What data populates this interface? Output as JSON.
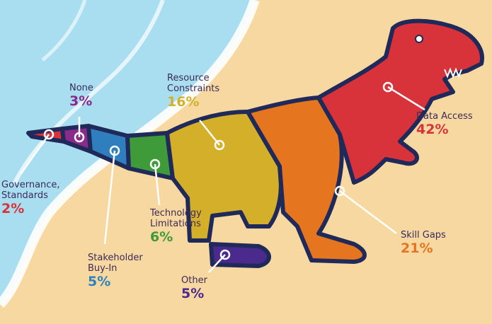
{
  "chart_data": {
    "type": "pie",
    "title": "",
    "categories": [
      "Data Access",
      "Skill Gaps",
      "Resource Constraints",
      "Technology Limitations",
      "Stakeholder Buy-In",
      "Other",
      "None",
      "Governance, Standards"
    ],
    "values": [
      42,
      21,
      16,
      6,
      5,
      5,
      3,
      2
    ],
    "labels": [
      {
        "name_lines": [
          "Data Access"
        ],
        "percent": "42%",
        "color": "#d8323a"
      },
      {
        "name_lines": [
          "Skill Gaps"
        ],
        "percent": "21%",
        "color": "#e5761f"
      },
      {
        "name_lines": [
          "Resource",
          "Constraints"
        ],
        "percent": "16%",
        "color": "#d4b02a"
      },
      {
        "name_lines": [
          "Technology",
          "Limitations"
        ],
        "percent": "6%",
        "color": "#3f9a3a"
      },
      {
        "name_lines": [
          "Stakeholder",
          "Buy-In"
        ],
        "percent": "5%",
        "color": "#2f7fbf"
      },
      {
        "name_lines": [
          "Other"
        ],
        "percent": "5%",
        "color": "#4a2a8c"
      },
      {
        "name_lines": [
          "None"
        ],
        "percent": "3%",
        "color": "#8a2a8a"
      },
      {
        "name_lines": [
          "Governance,",
          "Standards"
        ],
        "percent": "2%",
        "color": "#d8323a"
      }
    ]
  },
  "colors": {
    "sand": "#f7d8a0",
    "water": "#a9def0",
    "foam": "#ffffff",
    "outline": "#1f2a5a",
    "label_text": "#3b2a5a"
  }
}
